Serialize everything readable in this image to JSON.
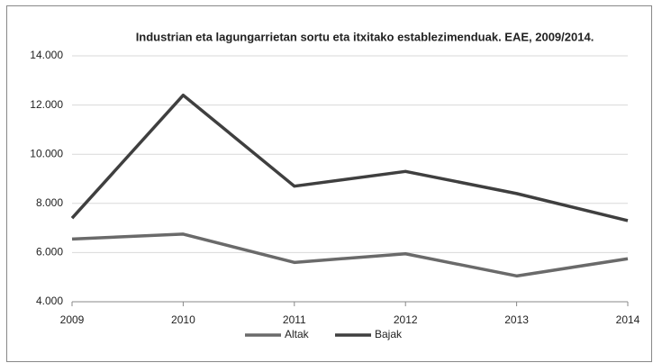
{
  "chart_data": {
    "type": "line",
    "title": "Industrian eta lagungarrietan sortu eta itxitako establezimenduak. EAE, 2009/2014.",
    "x": [
      2009,
      2010,
      2011,
      2012,
      2013,
      2014
    ],
    "xlim": [
      2009,
      2014
    ],
    "xticks": [
      2009,
      2010,
      2011,
      2012,
      2013,
      2014
    ],
    "ylim": [
      4000,
      14000
    ],
    "yticks": [
      {
        "value": 4000,
        "label": "4.000"
      },
      {
        "value": 6000,
        "label": "6.000"
      },
      {
        "value": 8000,
        "label": "8.000"
      },
      {
        "value": 10000,
        "label": "10.000"
      },
      {
        "value": 12000,
        "label": "12.000"
      },
      {
        "value": 14000,
        "label": "14.000"
      }
    ],
    "grid": true,
    "legend": "bottom",
    "series": [
      {
        "name": "Altak",
        "color": "#6a6a6a",
        "values": [
          6550,
          6750,
          5600,
          5950,
          5050,
          5750
        ]
      },
      {
        "name": "Bajak",
        "color": "#3f3f3f",
        "values": [
          7400,
          12400,
          8700,
          9300,
          8400,
          7300
        ]
      }
    ]
  }
}
